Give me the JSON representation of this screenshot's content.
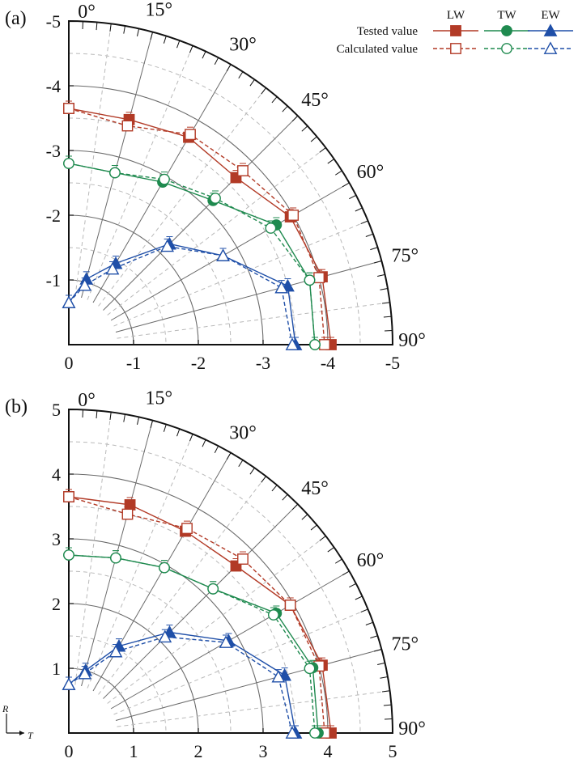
{
  "legend": {
    "headers": [
      "LW",
      "TW",
      "EW"
    ],
    "rows": [
      "Tested value",
      "Calculated value"
    ]
  },
  "panels": [
    {
      "id": "a",
      "label": "(a)"
    },
    {
      "id": "b",
      "label": "(b)"
    }
  ],
  "axis_labels": {
    "R": "R",
    "T": "T"
  },
  "colors": {
    "LW": "#b23a26",
    "TW": "#1f8a4f",
    "EW": "#1f4fa8"
  },
  "chart_data": [
    {
      "type": "scatter",
      "panel": "(a)",
      "coordinate_system": "polar quarter-circle, angle 0° (up) to 90° (right)",
      "angle_ticks": [
        "0°",
        "15°",
        "30°",
        "45°",
        "60°",
        "75°",
        "90°"
      ],
      "x_ticks": [
        "0",
        "-1",
        "-2",
        "-3",
        "-4",
        "-5"
      ],
      "y_ticks": [
        "0",
        "-1",
        "-2",
        "-3",
        "-4",
        "-5"
      ],
      "rlim": [
        0,
        -5
      ],
      "angles": [
        0,
        15,
        30,
        45,
        60,
        75,
        90
      ],
      "grid": true,
      "legend_position": "top-right",
      "series": [
        {
          "name": "LW Tested value",
          "group": "LW",
          "kind": "tested",
          "values": [
            -3.65,
            -3.6,
            -3.7,
            -3.65,
            -3.95,
            -4.05,
            -4.05
          ]
        },
        {
          "name": "LW Calculated value",
          "group": "LW",
          "kind": "calculated",
          "values": [
            -3.65,
            -3.5,
            -3.75,
            -3.8,
            -4.0,
            -4.0,
            -3.95
          ]
        },
        {
          "name": "TW Tested value",
          "group": "TW",
          "kind": "tested",
          "values": [
            -2.8,
            -2.75,
            -2.9,
            -3.15,
            -3.7,
            -3.85,
            -3.8
          ]
        },
        {
          "name": "TW Calculated value",
          "group": "TW",
          "kind": "calculated",
          "values": [
            -2.8,
            -2.75,
            -2.95,
            -3.2,
            -3.6,
            -3.85,
            -3.8
          ]
        },
        {
          "name": "EW Tested value",
          "group": "EW",
          "kind": "tested",
          "values": [
            -0.65,
            -1.05,
            -1.45,
            -2.2,
            -2.75,
            -3.5,
            -3.5
          ]
        },
        {
          "name": "EW Calculated value",
          "group": "EW",
          "kind": "calculated",
          "values": [
            -0.65,
            -0.95,
            -1.35,
            -2.15,
            -2.75,
            -3.4,
            -3.45
          ]
        }
      ]
    },
    {
      "type": "scatter",
      "panel": "(b)",
      "coordinate_system": "polar quarter-circle, angle 0° (up) to 90° (right)",
      "angle_ticks": [
        "0°",
        "15°",
        "30°",
        "45°",
        "60°",
        "75°",
        "90°"
      ],
      "x_ticks": [
        "0",
        "1",
        "2",
        "3",
        "4",
        "5"
      ],
      "y_ticks": [
        "0",
        "1",
        "2",
        "3",
        "4",
        "5"
      ],
      "rlim": [
        0,
        5
      ],
      "angles": [
        0,
        15,
        30,
        45,
        60,
        75,
        90
      ],
      "grid": true,
      "series": [
        {
          "name": "LW Tested value",
          "group": "LW",
          "kind": "tested",
          "values": [
            3.65,
            3.65,
            3.6,
            3.65,
            3.95,
            4.05,
            4.05
          ]
        },
        {
          "name": "LW Calculated value",
          "group": "LW",
          "kind": "calculated",
          "values": [
            3.65,
            3.5,
            3.65,
            3.8,
            3.95,
            4.0,
            3.95
          ]
        },
        {
          "name": "TW Tested value",
          "group": "TW",
          "kind": "tested",
          "values": [
            2.75,
            2.8,
            2.95,
            3.15,
            3.7,
            3.9,
            3.85
          ]
        },
        {
          "name": "TW Calculated value",
          "group": "TW",
          "kind": "calculated",
          "values": [
            2.75,
            2.8,
            2.95,
            3.15,
            3.65,
            3.85,
            3.8
          ]
        },
        {
          "name": "EW Tested value",
          "group": "EW",
          "kind": "tested",
          "values": [
            0.75,
            1.0,
            1.55,
            2.2,
            2.85,
            3.45,
            3.5
          ]
        },
        {
          "name": "EW Calculated value",
          "group": "EW",
          "kind": "calculated",
          "values": [
            0.75,
            0.95,
            1.45,
            2.1,
            2.8,
            3.35,
            3.45
          ]
        }
      ]
    }
  ]
}
